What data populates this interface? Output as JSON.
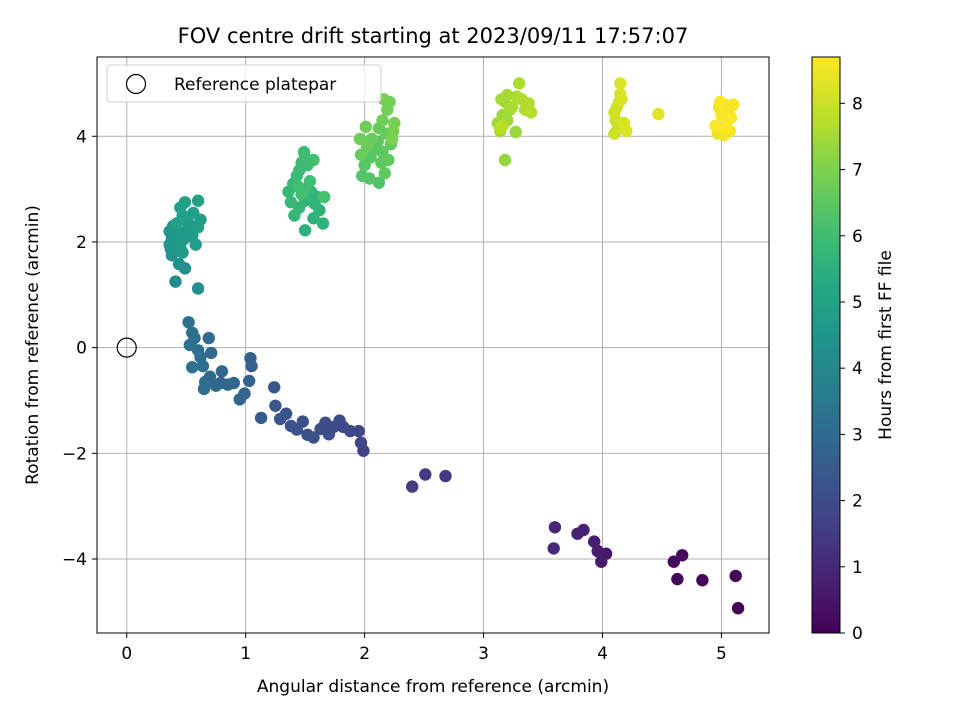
{
  "chart_data": {
    "type": "scatter",
    "title": "FOV centre drift starting at 2023/09/11 17:57:07",
    "xlabel": "Angular distance from reference (arcmin)",
    "ylabel": "Rotation from reference (arcmin)",
    "xlim": [
      -0.25,
      5.4
    ],
    "ylim": [
      -5.4,
      5.5
    ],
    "x_ticks": [
      0,
      1,
      2,
      3,
      4,
      5
    ],
    "y_ticks": [
      -4,
      -2,
      0,
      2,
      4
    ],
    "grid": true,
    "legend": {
      "position": "top-left",
      "entries": [
        "Reference platepar"
      ]
    },
    "reference_point": {
      "x": 0,
      "y": 0,
      "label": "Reference platepar"
    },
    "colorbar": {
      "label": "Hours from first FF file",
      "range": [
        0,
        8.7
      ],
      "ticks": [
        0,
        1,
        2,
        3,
        4,
        5,
        6,
        7,
        8
      ],
      "colormap": "viridis"
    },
    "points": [
      [
        5.14,
        -4.93,
        0.05
      ],
      [
        5.12,
        -4.32,
        0.1
      ],
      [
        4.84,
        -4.4,
        0.15
      ],
      [
        4.63,
        -4.38,
        0.2
      ],
      [
        4.6,
        -4.05,
        0.25
      ],
      [
        4.67,
        -3.93,
        0.3
      ],
      [
        4.03,
        -3.9,
        0.6
      ],
      [
        3.99,
        -4.05,
        0.65
      ],
      [
        3.96,
        -3.85,
        0.7
      ],
      [
        3.93,
        -3.67,
        0.75
      ],
      [
        3.84,
        -3.45,
        0.8
      ],
      [
        3.79,
        -3.52,
        0.85
      ],
      [
        3.6,
        -3.4,
        0.9
      ],
      [
        3.59,
        -3.8,
        0.95
      ],
      [
        2.68,
        -2.43,
        1.45
      ],
      [
        2.51,
        -2.4,
        1.5
      ],
      [
        2.4,
        -2.63,
        1.55
      ],
      [
        1.99,
        -1.95,
        1.75
      ],
      [
        1.97,
        -1.8,
        1.8
      ],
      [
        1.95,
        -1.58,
        1.85
      ],
      [
        1.88,
        -1.58,
        1.9
      ],
      [
        1.82,
        -1.5,
        1.95
      ],
      [
        1.79,
        -1.38,
        2.0
      ],
      [
        1.74,
        -1.5,
        2.0
      ],
      [
        1.7,
        -1.64,
        2.05
      ],
      [
        1.67,
        -1.42,
        2.05
      ],
      [
        1.63,
        -1.54,
        2.1
      ],
      [
        1.57,
        -1.7,
        2.1
      ],
      [
        1.52,
        -1.65,
        2.15
      ],
      [
        1.48,
        -1.4,
        2.15
      ],
      [
        1.43,
        -1.55,
        2.2
      ],
      [
        1.38,
        -1.48,
        2.2
      ],
      [
        1.34,
        -1.25,
        2.25
      ],
      [
        1.29,
        -1.35,
        2.3
      ],
      [
        1.25,
        -1.1,
        2.35
      ],
      [
        1.24,
        -0.75,
        2.4
      ],
      [
        1.13,
        -1.33,
        2.45
      ],
      [
        1.04,
        -0.2,
        2.7
      ],
      [
        1.05,
        -0.35,
        2.72
      ],
      [
        1.03,
        -0.63,
        2.75
      ],
      [
        0.99,
        -0.87,
        2.78
      ],
      [
        0.95,
        -0.98,
        2.8
      ],
      [
        0.9,
        -0.67,
        2.82
      ],
      [
        0.85,
        -0.7,
        2.85
      ],
      [
        0.8,
        -0.45,
        2.88
      ],
      [
        0.79,
        -0.67,
        2.9
      ],
      [
        0.75,
        -0.72,
        2.92
      ],
      [
        0.71,
        -0.1,
        2.95
      ],
      [
        0.69,
        0.18,
        2.98
      ],
      [
        0.7,
        -0.55,
        3.0
      ],
      [
        0.66,
        -0.65,
        3.02
      ],
      [
        0.64,
        -0.35,
        3.05
      ],
      [
        0.65,
        -0.78,
        3.08
      ],
      [
        0.62,
        -0.18,
        3.1
      ],
      [
        0.6,
        -0.05,
        3.12
      ],
      [
        0.57,
        0.18,
        3.15
      ],
      [
        0.55,
        0.28,
        3.18
      ],
      [
        0.53,
        0.05,
        3.2
      ],
      [
        0.52,
        0.48,
        3.22
      ],
      [
        0.55,
        -0.37,
        3.25
      ],
      [
        0.49,
        1.5,
        4.2
      ],
      [
        0.41,
        1.25,
        4.25
      ],
      [
        0.6,
        1.12,
        4.3
      ],
      [
        0.44,
        1.58,
        4.35
      ],
      [
        0.38,
        1.75,
        4.4
      ],
      [
        0.37,
        1.87,
        4.45
      ],
      [
        0.36,
        1.95,
        4.5
      ],
      [
        0.38,
        2.08,
        4.52
      ],
      [
        0.36,
        2.2,
        4.55
      ],
      [
        0.39,
        2.3,
        4.58
      ],
      [
        0.41,
        2.18,
        4.6
      ],
      [
        0.43,
        2.05,
        4.62
      ],
      [
        0.45,
        1.9,
        4.65
      ],
      [
        0.47,
        1.8,
        4.68
      ],
      [
        0.48,
        2.05,
        4.7
      ],
      [
        0.5,
        2.2,
        4.72
      ],
      [
        0.52,
        2.35,
        4.75
      ],
      [
        0.55,
        2.12,
        4.78
      ],
      [
        0.58,
        1.95,
        4.8
      ],
      [
        0.6,
        2.28,
        4.82
      ],
      [
        0.62,
        2.42,
        4.85
      ],
      [
        0.56,
        2.55,
        4.88
      ],
      [
        0.49,
        2.75,
        4.9
      ],
      [
        0.45,
        2.65,
        4.92
      ],
      [
        0.6,
        2.78,
        4.95
      ],
      [
        0.42,
        2.35,
        4.97
      ],
      [
        0.47,
        2.5,
        5.0
      ],
      [
        1.5,
        2.22,
        5.5
      ],
      [
        1.57,
        2.45,
        5.55
      ],
      [
        1.65,
        2.35,
        5.58
      ],
      [
        1.62,
        2.6,
        5.6
      ],
      [
        1.58,
        2.72,
        5.62
      ],
      [
        1.6,
        2.85,
        5.65
      ],
      [
        1.55,
        2.95,
        5.68
      ],
      [
        1.5,
        2.78,
        5.7
      ],
      [
        1.45,
        2.65,
        5.72
      ],
      [
        1.41,
        2.5,
        5.75
      ],
      [
        1.38,
        2.75,
        5.78
      ],
      [
        1.36,
        2.95,
        5.8
      ],
      [
        1.4,
        3.1,
        5.82
      ],
      [
        1.43,
        3.25,
        5.85
      ],
      [
        1.45,
        3.35,
        5.88
      ],
      [
        1.47,
        3.5,
        5.9
      ],
      [
        1.5,
        3.6,
        5.92
      ],
      [
        1.49,
        3.7,
        5.95
      ],
      [
        1.52,
        3.45,
        5.97
      ],
      [
        1.54,
        3.15,
        6.0
      ],
      [
        1.5,
        3.0,
        6.0
      ],
      [
        1.47,
        2.9,
        6.02
      ],
      [
        1.44,
        3.05,
        6.05
      ],
      [
        1.57,
        3.55,
        6.07
      ],
      [
        1.66,
        2.85,
        6.1
      ],
      [
        2.12,
        3.12,
        6.3
      ],
      [
        2.04,
        3.2,
        6.35
      ],
      [
        1.98,
        3.25,
        6.38
      ],
      [
        2.0,
        3.45,
        6.4
      ],
      [
        2.05,
        3.6,
        6.42
      ],
      [
        2.08,
        3.75,
        6.45
      ],
      [
        2.11,
        3.9,
        6.48
      ],
      [
        2.15,
        3.7,
        6.5
      ],
      [
        2.14,
        3.5,
        6.52
      ],
      [
        2.17,
        3.3,
        6.55
      ],
      [
        2.2,
        3.55,
        6.58
      ],
      [
        2.22,
        3.85,
        6.6
      ],
      [
        2.18,
        4.05,
        6.62
      ],
      [
        2.12,
        4.15,
        6.65
      ],
      [
        2.06,
        3.95,
        6.68
      ],
      [
        2.02,
        3.8,
        6.7
      ],
      [
        1.97,
        3.65,
        6.72
      ],
      [
        1.96,
        3.95,
        6.75
      ],
      [
        2.01,
        4.18,
        6.78
      ],
      [
        2.15,
        4.3,
        6.8
      ],
      [
        2.19,
        4.5,
        6.82
      ],
      [
        2.21,
        4.65,
        6.85
      ],
      [
        2.16,
        4.7,
        6.88
      ],
      [
        2.25,
        4.25,
        6.9
      ],
      [
        2.24,
        4.1,
        6.92
      ],
      [
        2.23,
        3.95,
        6.95
      ],
      [
        3.18,
        3.55,
        7.3
      ],
      [
        3.27,
        4.08,
        7.35
      ],
      [
        3.14,
        4.1,
        7.38
      ],
      [
        3.12,
        4.25,
        7.4
      ],
      [
        3.16,
        4.4,
        7.42
      ],
      [
        3.2,
        4.3,
        7.45
      ],
      [
        3.22,
        4.5,
        7.48
      ],
      [
        3.18,
        4.65,
        7.5
      ],
      [
        3.15,
        4.7,
        7.52
      ],
      [
        3.2,
        4.78,
        7.55
      ],
      [
        3.24,
        4.55,
        7.58
      ],
      [
        3.28,
        4.75,
        7.6
      ],
      [
        3.3,
        5.0,
        7.62
      ],
      [
        3.32,
        4.7,
        7.65
      ],
      [
        3.35,
        4.5,
        7.68
      ],
      [
        3.38,
        4.62,
        7.7
      ],
      [
        3.4,
        4.45,
        7.72
      ],
      [
        3.16,
        4.2,
        7.75
      ],
      [
        3.14,
        4.15,
        7.78
      ],
      [
        4.1,
        4.05,
        8.0
      ],
      [
        4.13,
        4.15,
        8.02
      ],
      [
        4.11,
        4.3,
        8.05
      ],
      [
        4.1,
        4.45,
        8.08
      ],
      [
        4.12,
        4.55,
        8.1
      ],
      [
        4.14,
        4.65,
        8.12
      ],
      [
        4.16,
        4.7,
        8.15
      ],
      [
        4.18,
        4.25,
        8.18
      ],
      [
        4.15,
        4.8,
        8.2
      ],
      [
        4.15,
        5.0,
        8.22
      ],
      [
        4.2,
        4.1,
        8.25
      ],
      [
        4.47,
        4.42,
        8.3
      ],
      [
        4.97,
        4.05,
        8.45
      ],
      [
        5.02,
        4.02,
        8.48
      ],
      [
        5.07,
        4.1,
        8.5
      ],
      [
        4.98,
        4.55,
        8.52
      ],
      [
        5.03,
        4.6,
        8.55
      ],
      [
        5.06,
        4.45,
        8.57
      ],
      [
        5.1,
        4.6,
        8.6
      ],
      [
        5.08,
        4.35,
        8.62
      ],
      [
        5.0,
        4.4,
        8.64
      ],
      [
        5.05,
        4.3,
        8.66
      ],
      [
        4.95,
        4.2,
        8.67
      ],
      [
        4.99,
        4.65,
        8.68
      ],
      [
        5.04,
        4.15,
        8.7
      ]
    ]
  }
}
